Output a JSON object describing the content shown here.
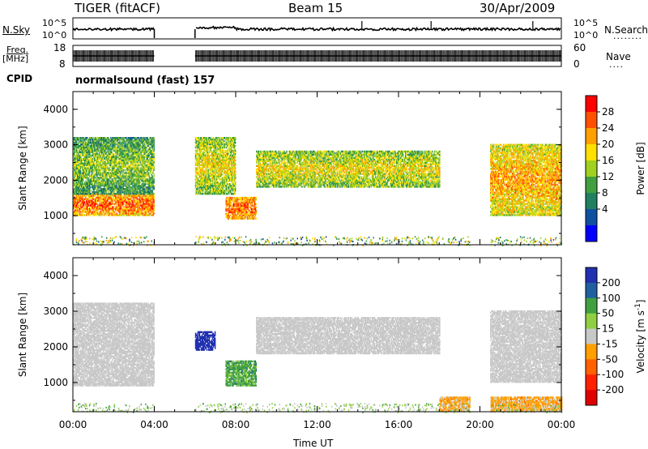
{
  "header": {
    "radar_title": "TIGER (fitACF)",
    "beam_label": "Beam 15",
    "date_label": "30/Apr/2009"
  },
  "strips": {
    "nsky_label": "N.Sky",
    "nsky_ticks": [
      "10^5",
      "10^0"
    ],
    "nsearch_label": "N.Search",
    "nsearch_ticks": [
      "10^5",
      "10^0"
    ],
    "freq_label": "Freq.",
    "freq_unit": "[MHz]",
    "freq_ticks": [
      "18",
      "8"
    ],
    "nave_label": "Nave",
    "nave_ticks": [
      "60",
      "0"
    ],
    "cpid_label": "CPID",
    "cpid_value": "normalsound (fast) 157"
  },
  "axes": {
    "y_label": "Slant Range [km]",
    "y_ticks": [
      "4000",
      "3000",
      "2000",
      "1000"
    ],
    "x_label": "Time UT",
    "x_ticks": [
      "00:00",
      "04:00",
      "08:00",
      "12:00",
      "16:00",
      "20:00",
      "00:00"
    ]
  },
  "colorbars": {
    "power": {
      "label": "Power [dB]",
      "ticks": [
        "28",
        "24",
        "20",
        "16",
        "12",
        "8",
        "4"
      ],
      "colors": [
        "#ff0000",
        "#ff5000",
        "#ffa000",
        "#ffe000",
        "#a0d020",
        "#40a040",
        "#208060",
        "#1050a0",
        "#0000ff"
      ]
    },
    "velocity": {
      "label": "Velocity [m s",
      "label_sup": "-1",
      "label_end": "]",
      "ticks": [
        "200",
        "100",
        "50",
        "15",
        "-15",
        "-50",
        "-100",
        "-200"
      ],
      "colors": [
        "#2030b0",
        "#2060a0",
        "#40a040",
        "#90d040",
        "#c8c8c8",
        "#ffa000",
        "#ff6000",
        "#ff2000",
        "#e00000"
      ]
    }
  },
  "chart_data": [
    {
      "type": "heatmap",
      "panel": "power",
      "x_range_hours": [
        0,
        24
      ],
      "y_range_km": [
        180,
        4500
      ],
      "color_scale": "Power [dB]",
      "data_gaps_hours": [
        [
          4.0,
          6.0
        ],
        [
          19.5,
          20.5
        ]
      ],
      "features": [
        {
          "time": "00:00-04:00",
          "range_km": [
            1000,
            1600
          ],
          "power_db": 28
        },
        {
          "time": "00:00-04:00",
          "range_km": [
            1600,
            3200
          ],
          "power_db": 16
        },
        {
          "time": "06:00-08:00",
          "range_km": [
            1600,
            3200
          ],
          "power_db": 20
        },
        {
          "time": "07:30-09:00",
          "range_km": [
            900,
            1500
          ],
          "power_db": 28
        },
        {
          "time": "09:00-18:00",
          "range_km": [
            1800,
            2800
          ],
          "power_db": 20
        },
        {
          "time": "20:30-24:00",
          "range_km": [
            1000,
            3000
          ],
          "power_db": 24
        }
      ]
    },
    {
      "type": "heatmap",
      "panel": "velocity",
      "x_range_hours": [
        0,
        24
      ],
      "y_range_km": [
        180,
        4500
      ],
      "color_scale": "Velocity [m s-1]",
      "data_gaps_hours": [
        [
          4.0,
          6.0
        ],
        [
          19.5,
          20.5
        ]
      ],
      "features": [
        {
          "time": "00:00-04:00",
          "range_km": [
            900,
            3200
          ],
          "velocity": -15
        },
        {
          "time": "06:00-07:00",
          "range_km": [
            1900,
            2400
          ],
          "velocity": 200
        },
        {
          "time": "07:30-09:00",
          "range_km": [
            900,
            1600
          ],
          "velocity": 50
        },
        {
          "time": "09:00-18:00",
          "range_km": [
            1800,
            2800
          ],
          "velocity": -15
        },
        {
          "time": "18:00-24:00",
          "range_km": [
            200,
            600
          ],
          "velocity": -50
        },
        {
          "time": "20:30-24:00",
          "range_km": [
            1000,
            3000
          ],
          "velocity": -15
        }
      ]
    }
  ]
}
